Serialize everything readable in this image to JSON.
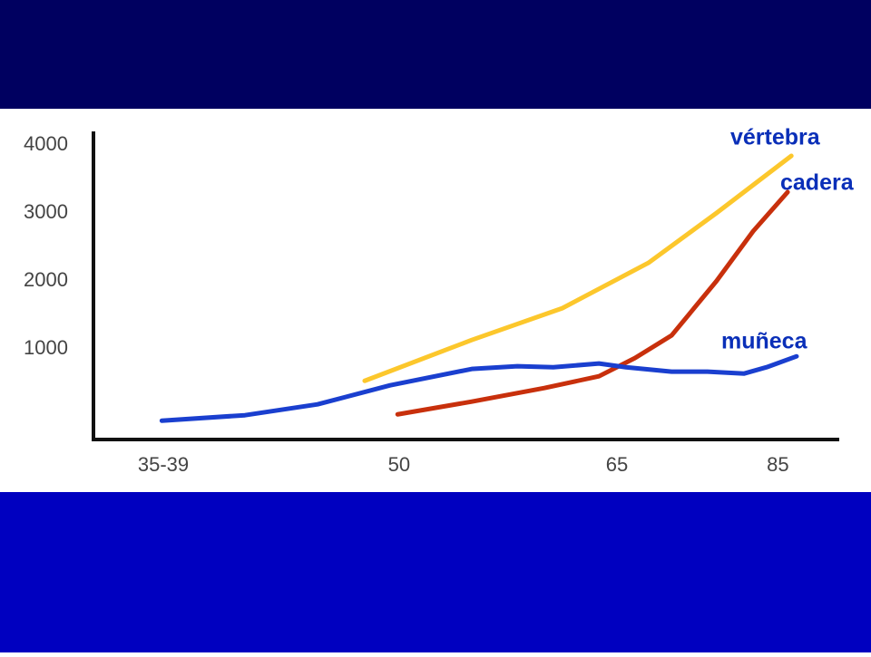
{
  "chart_data": {
    "type": "line",
    "xlim": [
      0,
      100
    ],
    "ylim": [
      -330,
      4200
    ],
    "xticks": [
      {
        "value": 9.7,
        "label": "35-39"
      },
      {
        "value": 41.2,
        "label": "50"
      },
      {
        "value": 70.3,
        "label": "65"
      },
      {
        "value": 91.8,
        "label": "85"
      }
    ],
    "yticks": [
      1000,
      2000,
      3000,
      4000
    ],
    "series": [
      {
        "name": "vértebra",
        "color": "#fcc72c",
        "x": [
          36.6,
          50.9,
          63.0,
          74.5,
          83.6,
          93.6
        ],
        "values": [
          533,
          1133,
          1600,
          2267,
          3000,
          3840
        ]
      },
      {
        "name": "cadera",
        "color": "#c8300c",
        "x": [
          41.0,
          50.9,
          60.6,
          67.9,
          72.7,
          77.6,
          83.6,
          88.5,
          93.1
        ],
        "values": [
          40,
          227,
          427,
          600,
          867,
          1200,
          2000,
          2733,
          3307
        ]
      },
      {
        "name": "muñeca",
        "color": "#1a3fcf",
        "x": [
          9.5,
          20.6,
          30.3,
          40.0,
          50.9,
          57.0,
          61.8,
          67.9,
          71.5,
          77.6,
          82.4,
          87.3,
          90.3,
          94.3
        ],
        "values": [
          -53,
          27,
          187,
          467,
          707,
          747,
          733,
          787,
          733,
          667,
          667,
          640,
          733,
          893
        ]
      }
    ]
  }
}
